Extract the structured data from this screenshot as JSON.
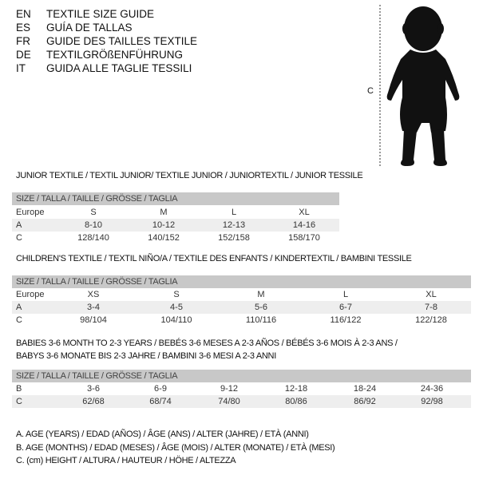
{
  "header": {
    "lines": [
      {
        "code": "EN",
        "text": "TEXTILE SIZE GUIDE"
      },
      {
        "code": "ES",
        "text": "GUÍA DE TALLAS"
      },
      {
        "code": "FR",
        "text": "GUIDE DES TAILLES TEXTILE"
      },
      {
        "code": "DE",
        "text": "TEXTILGRÖßENFÜHRUNG"
      },
      {
        "code": "IT",
        "text": "GUIDA ALLE TAGLIE TESSILI"
      }
    ]
  },
  "figure": {
    "height_label": "C"
  },
  "size_label": "SIZE / TALLA / TAILLE / GRÖSSE / TAGLIA",
  "tables": [
    {
      "title": "JUNIOR TEXTILE / TEXTIL JUNIOR/ TEXTILE JUNIOR / JUNIORTEXTIL / JUNIOR TESSILE",
      "rows": [
        {
          "label": "Europe",
          "values": [
            "S",
            "M",
            "L",
            "XL"
          ]
        },
        {
          "label": "A",
          "values": [
            "8-10",
            "10-12",
            "12-13",
            "14-16"
          ]
        },
        {
          "label": "C",
          "values": [
            "128/140",
            "140/152",
            "152/158",
            "158/170"
          ]
        }
      ]
    },
    {
      "title": "CHILDREN'S TEXTILE / TEXTIL NIÑO/A / TEXTILE DES ENFANTS / KINDERTEXTIL / BAMBINI TESSILE",
      "rows": [
        {
          "label": "Europe",
          "values": [
            "XS",
            "S",
            "M",
            "L",
            "XL"
          ]
        },
        {
          "label": "A",
          "values": [
            "3-4",
            "4-5",
            "5-6",
            "6-7",
            "7-8"
          ]
        },
        {
          "label": "C",
          "values": [
            "98/104",
            "104/110",
            "110/116",
            "116/122",
            "122/128"
          ]
        }
      ]
    },
    {
      "title": "BABIES 3-6 MONTH TO 2-3 YEARS / BEBÉS 3-6 MESES A 2-3 AÑOS / BÉBÉS 3-6 MOIS À 2-3 ANS /",
      "title2": "BABYS 3-6 MONATE BIS 2-3 JAHRE / BAMBINI 3-6 MESI A 2-3 ANNI",
      "rows": [
        {
          "label": "B",
          "values": [
            "3-6",
            "6-9",
            "9-12",
            "12-18",
            "18-24",
            "24-36"
          ]
        },
        {
          "label": "C",
          "values": [
            "62/68",
            "68/74",
            "74/80",
            "80/86",
            "86/92",
            "92/98"
          ]
        }
      ]
    }
  ],
  "legend": [
    "A. AGE (YEARS) / EDAD (AÑOS) / ÂGE (ANS) / ALTER (JAHRE) / ETÀ (ANNI)",
    "B. AGE (MONTHS) / EDAD (MESES) / ÂGE (MOIS) / ALTER (MONATE) / ETÀ (MESI)",
    "C. (cm) HEIGHT / ALTURA / HAUTEUR / HÖHE / ALTEZZA"
  ]
}
